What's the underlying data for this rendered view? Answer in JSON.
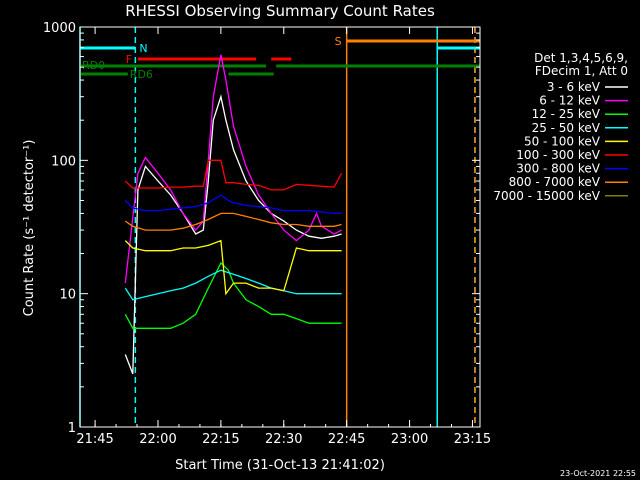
{
  "chart_data": {
    "type": "line",
    "title": "RHESSI Observing Summary Count Rates",
    "xlabel": "Start Time (31-Oct-13 21:41:02)",
    "ylabel": "Count Rate (s⁻¹ detector⁻¹)",
    "ylim": [
      1,
      1000
    ],
    "yscale": "log",
    "xlim_minutes": [
      21.69,
      23.28
    ],
    "x_ticks": [
      "21:45",
      "22:00",
      "22:15",
      "22:30",
      "22:45",
      "23:00",
      "23:15"
    ],
    "y_ticks": [
      "1",
      "10",
      "100",
      "1000"
    ],
    "legend_header": [
      "Det 1,3,4,5,6,9,",
      "FDecim 1, Att 0"
    ],
    "legend_placement": "right",
    "series": [
      {
        "name": "3 - 6 keV",
        "color": "#ffffff",
        "values": [
          [
            21.87,
            3.5
          ],
          [
            21.9,
            2.5
          ],
          [
            21.92,
            60
          ],
          [
            21.95,
            90
          ],
          [
            22.0,
            70
          ],
          [
            22.05,
            55
          ],
          [
            22.1,
            40
          ],
          [
            22.15,
            28
          ],
          [
            22.18,
            30
          ],
          [
            22.2,
            70
          ],
          [
            22.22,
            200
          ],
          [
            22.25,
            300
          ],
          [
            22.27,
            200
          ],
          [
            22.3,
            120
          ],
          [
            22.35,
            70
          ],
          [
            22.4,
            50
          ],
          [
            22.45,
            40
          ],
          [
            22.5,
            35
          ],
          [
            22.55,
            30
          ],
          [
            22.6,
            27
          ],
          [
            22.65,
            26
          ],
          [
            22.7,
            27
          ],
          [
            22.73,
            28
          ]
        ]
      },
      {
        "name": "6 - 12 keV",
        "color": "#ff00ff",
        "values": [
          [
            21.87,
            12
          ],
          [
            21.92,
            80
          ],
          [
            21.95,
            105
          ],
          [
            22.0,
            80
          ],
          [
            22.05,
            60
          ],
          [
            22.1,
            40
          ],
          [
            22.15,
            30
          ],
          [
            22.18,
            35
          ],
          [
            22.2,
            100
          ],
          [
            22.22,
            300
          ],
          [
            22.25,
            620
          ],
          [
            22.27,
            400
          ],
          [
            22.3,
            180
          ],
          [
            22.35,
            90
          ],
          [
            22.4,
            55
          ],
          [
            22.45,
            40
          ],
          [
            22.5,
            30
          ],
          [
            22.55,
            25
          ],
          [
            22.6,
            30
          ],
          [
            22.63,
            40
          ],
          [
            22.65,
            32
          ],
          [
            22.7,
            28
          ],
          [
            22.73,
            30
          ]
        ]
      },
      {
        "name": "12 - 25 keV",
        "color": "#00ff00",
        "values": [
          [
            21.87,
            7
          ],
          [
            21.9,
            5.5
          ],
          [
            21.95,
            5.5
          ],
          [
            22.0,
            5.5
          ],
          [
            22.05,
            5.5
          ],
          [
            22.1,
            6
          ],
          [
            22.15,
            7
          ],
          [
            22.2,
            11
          ],
          [
            22.25,
            17
          ],
          [
            22.28,
            15
          ],
          [
            22.3,
            12
          ],
          [
            22.35,
            9
          ],
          [
            22.4,
            8
          ],
          [
            22.45,
            7
          ],
          [
            22.5,
            7
          ],
          [
            22.55,
            6.5
          ],
          [
            22.6,
            6
          ],
          [
            22.65,
            6
          ],
          [
            22.7,
            6
          ],
          [
            22.73,
            6
          ]
        ]
      },
      {
        "name": "25 - 50 keV",
        "color": "#00ffff",
        "values": [
          [
            21.87,
            11
          ],
          [
            21.9,
            9
          ],
          [
            21.95,
            9.5
          ],
          [
            22.0,
            10
          ],
          [
            22.05,
            10.5
          ],
          [
            22.1,
            11
          ],
          [
            22.15,
            12
          ],
          [
            22.2,
            13.5
          ],
          [
            22.25,
            15
          ],
          [
            22.3,
            14
          ],
          [
            22.35,
            13
          ],
          [
            22.4,
            12
          ],
          [
            22.45,
            11
          ],
          [
            22.5,
            10.5
          ],
          [
            22.55,
            10
          ],
          [
            22.6,
            10
          ],
          [
            22.65,
            10
          ],
          [
            22.7,
            10
          ],
          [
            22.73,
            10
          ]
        ]
      },
      {
        "name": "50 - 100 keV",
        "color": "#ffff00",
        "values": [
          [
            21.87,
            25
          ],
          [
            21.9,
            22
          ],
          [
            21.95,
            21
          ],
          [
            22.0,
            21
          ],
          [
            22.05,
            21
          ],
          [
            22.1,
            22
          ],
          [
            22.15,
            22
          ],
          [
            22.2,
            23
          ],
          [
            22.25,
            25
          ],
          [
            22.27,
            10
          ],
          [
            22.3,
            12
          ],
          [
            22.35,
            12
          ],
          [
            22.4,
            11
          ],
          [
            22.45,
            11
          ],
          [
            22.5,
            10.5
          ],
          [
            22.55,
            22
          ],
          [
            22.6,
            21
          ],
          [
            22.65,
            21
          ],
          [
            22.7,
            21
          ],
          [
            22.73,
            21
          ]
        ]
      },
      {
        "name": "100 - 300 keV",
        "color": "#ff0000",
        "values": [
          [
            21.87,
            70
          ],
          [
            21.9,
            62
          ],
          [
            21.95,
            62
          ],
          [
            22.0,
            62
          ],
          [
            22.05,
            63
          ],
          [
            22.1,
            63
          ],
          [
            22.15,
            64
          ],
          [
            22.18,
            64
          ],
          [
            22.2,
            100
          ],
          [
            22.25,
            100
          ],
          [
            22.27,
            68
          ],
          [
            22.3,
            68
          ],
          [
            22.35,
            66
          ],
          [
            22.4,
            65
          ],
          [
            22.45,
            60
          ],
          [
            22.5,
            60
          ],
          [
            22.55,
            66
          ],
          [
            22.6,
            65
          ],
          [
            22.65,
            64
          ],
          [
            22.7,
            63
          ],
          [
            22.73,
            80
          ]
        ]
      },
      {
        "name": "300 - 800 keV",
        "color": "#0000ff",
        "values": [
          [
            21.87,
            50
          ],
          [
            21.9,
            44
          ],
          [
            21.95,
            42
          ],
          [
            22.0,
            42
          ],
          [
            22.05,
            43
          ],
          [
            22.1,
            44
          ],
          [
            22.15,
            45
          ],
          [
            22.2,
            48
          ],
          [
            22.25,
            55
          ],
          [
            22.28,
            50
          ],
          [
            22.3,
            48
          ],
          [
            22.35,
            46
          ],
          [
            22.4,
            45
          ],
          [
            22.45,
            44
          ],
          [
            22.5,
            42
          ],
          [
            22.55,
            42
          ],
          [
            22.6,
            42
          ],
          [
            22.65,
            41
          ],
          [
            22.7,
            40
          ],
          [
            22.73,
            40
          ]
        ]
      },
      {
        "name": "800 - 7000 keV",
        "color": "#ff8000",
        "values": [
          [
            21.87,
            35
          ],
          [
            21.9,
            32
          ],
          [
            21.95,
            30
          ],
          [
            22.0,
            30
          ],
          [
            22.05,
            30
          ],
          [
            22.1,
            31
          ],
          [
            22.15,
            33
          ],
          [
            22.2,
            36
          ],
          [
            22.25,
            40
          ],
          [
            22.3,
            40
          ],
          [
            22.35,
            38
          ],
          [
            22.4,
            36
          ],
          [
            22.45,
            34
          ],
          [
            22.5,
            33
          ],
          [
            22.55,
            33
          ],
          [
            22.6,
            32
          ],
          [
            22.65,
            32
          ],
          [
            22.7,
            32
          ],
          [
            22.73,
            33
          ]
        ]
      },
      {
        "name": "7000 - 15000 keV",
        "color": "#808000",
        "values": []
      }
    ],
    "flags": [
      {
        "label": "N",
        "color": "#00ffff",
        "segments": [
          [
            21.69,
            21.91
          ]
        ]
      },
      {
        "label": "F",
        "color": "#ff0000",
        "segments": [
          [
            21.92,
            22.39
          ],
          [
            22.45,
            22.53
          ]
        ]
      },
      {
        "label": "RD0",
        "color": "#008000",
        "segments": [
          [
            21.69,
            22.43
          ],
          [
            22.47,
            23.28
          ]
        ]
      },
      {
        "label": "RD6",
        "color": "#008000",
        "segments": [
          [
            21.69,
            21.88
          ],
          [
            22.28,
            22.46
          ]
        ]
      },
      {
        "label": "S",
        "color": "#ff8000",
        "segments": [
          [
            22.75,
            23.28
          ]
        ]
      },
      {
        "label": "",
        "color": "#00ffff",
        "segments": [
          [
            23.11,
            23.28
          ]
        ]
      }
    ],
    "vertical_markers": [
      {
        "x": 21.69,
        "color": "#00ffff",
        "style": "solid"
      },
      {
        "x": 21.91,
        "color": "#00ffff",
        "style": "dashed"
      },
      {
        "x": 22.75,
        "color": "#ff8000",
        "style": "solid"
      },
      {
        "x": 23.11,
        "color": "#00ffff",
        "style": "solid"
      },
      {
        "x": 23.26,
        "color": "#00ffff",
        "style": "dashed"
      },
      {
        "x": 23.26,
        "color": "#ff8000",
        "style": "dashed"
      }
    ]
  },
  "footer": {
    "date": "23-Oct-2021 22:55"
  }
}
